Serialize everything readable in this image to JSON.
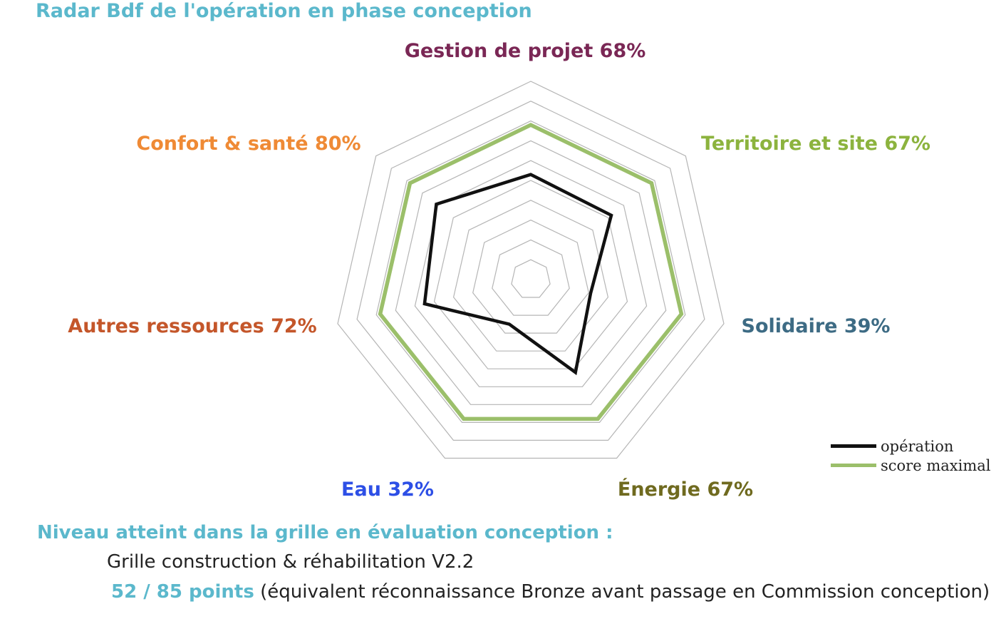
{
  "title": "Radar Bdf de l'opération en phase conception",
  "chart_data": {
    "type": "radar",
    "title": "Radar Bdf de l'opération en phase conception",
    "axes": [
      {
        "name": "Gestion de projet",
        "label": "Gestion de projet 68%",
        "percent": 68,
        "color": "#7a2755"
      },
      {
        "name": "Territoire et site",
        "label": "Territoire et site 67%",
        "percent": 67,
        "color": "#8cb33e"
      },
      {
        "name": "Solidaire",
        "label": "Solidaire 39%",
        "percent": 39,
        "color": "#3d6b84"
      },
      {
        "name": "Énergie",
        "label": "Énergie 67%",
        "percent": 67,
        "color": "#6f6a1f"
      },
      {
        "name": "Eau",
        "label": "Eau 32%",
        "percent": 32,
        "color": "#2d4fe6"
      },
      {
        "name": "Autres ressources",
        "label": "Autres ressources 72%",
        "percent": 72,
        "color": "#c4562a"
      },
      {
        "name": "Confort & santé",
        "label": "Confort & santé 80%",
        "percent": 80,
        "color": "#ef8a35"
      }
    ],
    "series": [
      {
        "name": "opération",
        "values": [
          53,
          52,
          31,
          52,
          25,
          55,
          61
        ],
        "color": "#111111"
      },
      {
        "name": "score maximal",
        "values": [
          78,
          78,
          78,
          78,
          78,
          78,
          78
        ],
        "color": "#9bbf6a"
      }
    ],
    "rlim": [
      0,
      100
    ],
    "grid_levels": [
      10,
      20,
      30,
      40,
      50,
      60,
      70,
      80,
      90,
      100
    ],
    "legend_position": "bottom-right"
  },
  "legend": {
    "items": [
      {
        "label": "opération",
        "color": "#111111"
      },
      {
        "label": "score maximal",
        "color": "#9bbf6a"
      }
    ]
  },
  "footer": {
    "heading": "Niveau atteint dans la grille en évaluation conception :",
    "grid": "Grille construction & réhabilitation V2.2",
    "points": "52 / 85 points",
    "points_note": " (équivalent réconnaissance Bronze avant passage en Commission conception)"
  }
}
